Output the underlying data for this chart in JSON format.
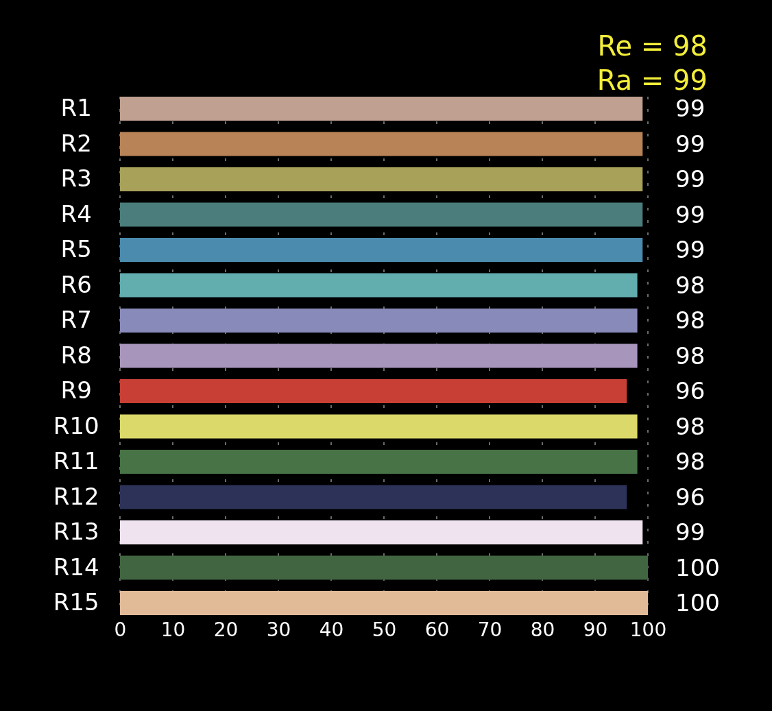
{
  "chart_data": {
    "type": "bar",
    "orientation": "horizontal",
    "categories": [
      "R1",
      "R2",
      "R3",
      "R4",
      "R5",
      "R6",
      "R7",
      "R8",
      "R9",
      "R10",
      "R11",
      "R12",
      "R13",
      "R14",
      "R15"
    ],
    "values": [
      99,
      99,
      99,
      99,
      99,
      98,
      98,
      98,
      96,
      98,
      98,
      96,
      99,
      100,
      100
    ],
    "colors": [
      "#bfa091",
      "#b88457",
      "#a8a15a",
      "#4a7d7b",
      "#4a8bae",
      "#62adae",
      "#888bba",
      "#a895bc",
      "#c83f35",
      "#dad96a",
      "#477346",
      "#2d3259",
      "#eee3ef",
      "#416540",
      "#e1bb98"
    ],
    "xlim": [
      0,
      100
    ],
    "xticks": [
      0,
      10,
      20,
      30,
      40,
      50,
      60,
      70,
      80,
      90,
      100
    ],
    "grid": "x",
    "data_labels": true,
    "annotations": [
      "Re = 98",
      "Ra = 99"
    ]
  }
}
